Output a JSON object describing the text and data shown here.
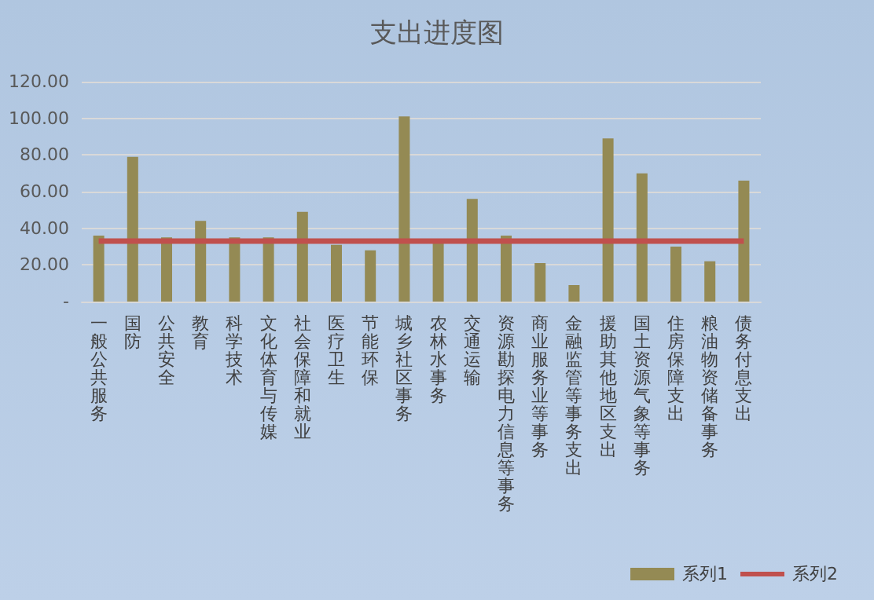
{
  "chart_data": {
    "type": "bar",
    "title": "支出进度图",
    "categories": [
      "一般公共服务",
      "国防",
      "公共安全",
      "教育",
      "科学技术",
      "文化体育与传媒",
      "社会保障和就业",
      "医疗卫生",
      "节能环保",
      "城乡社区事务",
      "农林水事务",
      "交通运输",
      "资源勘探电力信息等事务",
      "商业服务业等事务",
      "金融监管等事务支出",
      "援助其他地区支出",
      "国土资源气象等事务",
      "住房保障支出",
      "粮油物资储备事务",
      "债务付息支出"
    ],
    "series": [
      {
        "name": "系列1",
        "color": "#948a54",
        "values": [
          36,
          79,
          35,
          44,
          35,
          35,
          49,
          31,
          28,
          101,
          32,
          56,
          36,
          21,
          9,
          89,
          70,
          30,
          22,
          66
        ]
      },
      {
        "name": "系列2",
        "type": "line",
        "color": "#c0504d",
        "values": [
          33,
          33,
          33,
          33,
          33,
          33,
          33,
          33,
          33,
          33,
          33,
          33,
          33,
          33,
          33,
          33,
          33,
          33,
          33,
          33
        ]
      }
    ],
    "ylim": [
      0,
      120
    ],
    "yticks": [
      {
        "value": 0,
        "label": "-"
      },
      {
        "value": 20,
        "label": "20.00"
      },
      {
        "value": 40,
        "label": "40.00"
      },
      {
        "value": 60,
        "label": "60.00"
      },
      {
        "value": 80,
        "label": "80.00"
      },
      {
        "value": 100,
        "label": "100.00"
      },
      {
        "value": 120,
        "label": "120.00"
      }
    ],
    "grid": "y",
    "legend": "bottom right",
    "marker": "none"
  }
}
